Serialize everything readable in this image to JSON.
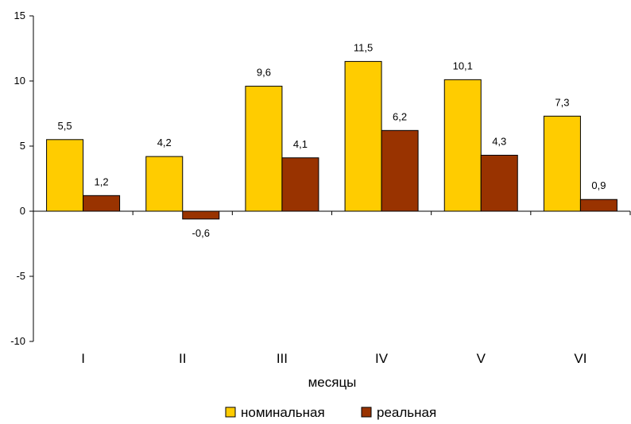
{
  "chart_data": {
    "type": "bar",
    "categories": [
      "I",
      "II",
      "III",
      "IV",
      "V",
      "VI"
    ],
    "series": [
      {
        "name": "номинальная",
        "values": [
          5.5,
          4.2,
          9.6,
          11.5,
          10.1,
          7.3
        ],
        "labels": [
          "5,5",
          "4,2",
          "9,6",
          "11,5",
          "10,1",
          "7,3"
        ],
        "color": "#ffcc00"
      },
      {
        "name": "реальная",
        "values": [
          1.2,
          -0.6,
          4.1,
          6.2,
          4.3,
          0.9
        ],
        "labels": [
          "1,2",
          "-0,6",
          "4,1",
          "6,2",
          "4,3",
          "0,9"
        ],
        "color": "#993300"
      }
    ],
    "xlabel": "месяцы",
    "ylabel": "",
    "ylim": [
      -10,
      15
    ],
    "yticks": [
      15,
      10,
      5,
      0,
      -5,
      -10
    ],
    "ytick_labels": [
      "15",
      "10",
      "5",
      "0",
      "-5",
      "-10"
    ],
    "legend_position": "bottom",
    "grid": false
  }
}
